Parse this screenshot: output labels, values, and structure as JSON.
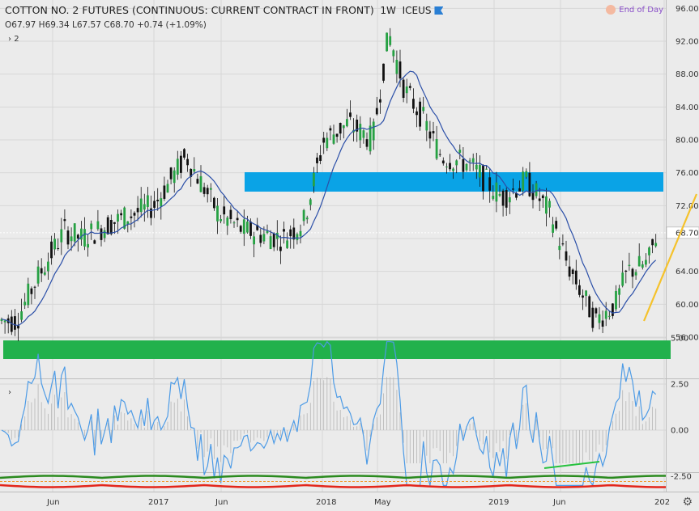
{
  "header": {
    "title": "COTTON NO. 2 FUTURES (CONTINUOUS: CURRENT CONTRACT IN FRONT)",
    "interval": "1W",
    "exchange": "ICEUS",
    "open": "O67.97",
    "high": "H69.34",
    "low": "L67.57",
    "close": "C68.70",
    "change": "+0.74 (+1.09%)",
    "studies_count": "2",
    "end_of_day": "End of Day"
  },
  "price_axis": {
    "ticks": [
      "96.00",
      "92.00",
      "88.00",
      "84.00",
      "80.00",
      "76.00",
      "72.00",
      "68.70",
      "64.00",
      "60.00",
      "56.00"
    ],
    "last_price": "68.70"
  },
  "oscillator_axis": {
    "ticks": [
      "5.00",
      "2.50",
      "0.00",
      "-2.50"
    ]
  },
  "time_axis": {
    "labels": [
      "Jun",
      "2017",
      "Jun",
      "2018",
      "May",
      "2019",
      "Jun",
      "202"
    ]
  },
  "colors": {
    "ma": "#2b4fa8",
    "blue_zone": "#0aa3e6",
    "green_zone": "#22b14c",
    "trendline": "#f5c22b",
    "divergence": "#27c23f",
    "osc_line": "#4d9be6",
    "bull_candle": "#26a143",
    "bear_candle": "#111111"
  },
  "icons": {
    "gear": "gear-icon",
    "collapse": "chevron-right-icon"
  }
}
